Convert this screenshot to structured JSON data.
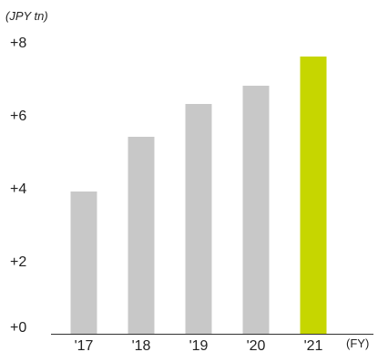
{
  "chart_data": {
    "type": "bar",
    "unit_label": "(JPY tn)",
    "x_unit_label": "(FY)",
    "categories": [
      "'17",
      "'18",
      "'19",
      "'20",
      "'21"
    ],
    "values": [
      3.9,
      5.4,
      6.3,
      6.8,
      7.6
    ],
    "y_ticks": [
      "+0",
      "+2",
      "+4",
      "+6",
      "+8"
    ],
    "y_tick_values": [
      0,
      2,
      4,
      6,
      8
    ],
    "ylim": [
      0,
      8
    ],
    "grid": false,
    "colors": {
      "bar": "#c8c8c8",
      "highlight_bar": "#c6d600",
      "axis": "#333333"
    },
    "highlight_index": 4
  }
}
